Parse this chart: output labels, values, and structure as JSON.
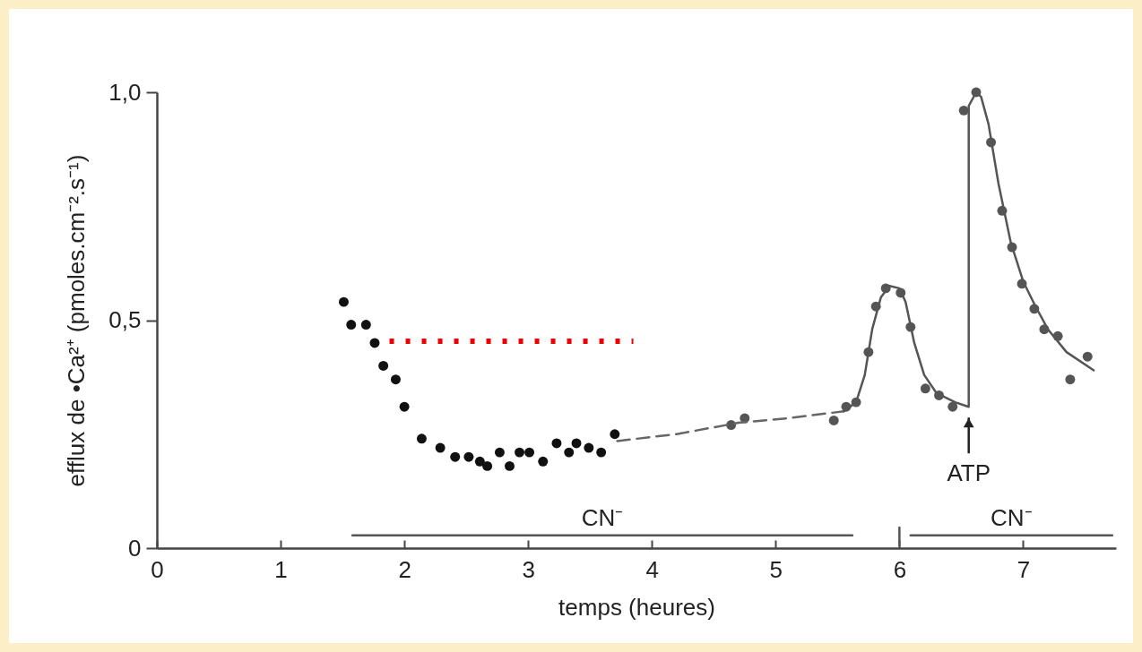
{
  "chart_data": {
    "type": "scatter",
    "xlabel": "temps (heures)",
    "ylabel": "efflux de •Ca²⁺ (pmoles.cm⁻².s⁻¹)",
    "xlim": [
      0,
      7.75
    ],
    "ylim": [
      0,
      1.0
    ],
    "xticks": [
      0,
      1,
      2,
      3,
      4,
      5,
      6,
      7
    ],
    "yticks": [
      0,
      {
        "value": 0.5,
        "label": "0,5"
      },
      {
        "value": 1.0,
        "label": "1,0"
      }
    ],
    "grid": false,
    "annotations": [
      {
        "text": "ATP",
        "x": 6.56,
        "y": 0.31
      }
    ],
    "series": [
      {
        "color": "#111111",
        "marker": "circle",
        "x": [
          1.51,
          1.57,
          1.69,
          1.76,
          1.83,
          1.93,
          2.0,
          2.14,
          2.29,
          2.41,
          2.52,
          2.61,
          2.67,
          2.77,
          2.85,
          2.93,
          3.01,
          3.12,
          3.23,
          3.33,
          3.39,
          3.49,
          3.59,
          3.7
        ],
        "values": [
          0.54,
          0.49,
          0.49,
          0.45,
          0.4,
          0.37,
          0.31,
          0.24,
          0.22,
          0.2,
          0.2,
          0.19,
          0.18,
          0.21,
          0.18,
          0.21,
          0.21,
          0.19,
          0.23,
          0.21,
          0.23,
          0.22,
          0.21,
          0.25
        ]
      },
      {
        "color": "#555555",
        "marker": "circle",
        "x": [
          4.64,
          4.75,
          5.47,
          5.57,
          5.65,
          5.75,
          5.81,
          5.89,
          6.01,
          6.09,
          6.21,
          6.32,
          6.43,
          6.52,
          6.62,
          6.74,
          6.83,
          6.91,
          6.99,
          7.09,
          7.17,
          7.28,
          7.38,
          7.52
        ],
        "values": [
          0.27,
          0.285,
          0.28,
          0.31,
          0.32,
          0.43,
          0.53,
          0.57,
          0.56,
          0.485,
          0.35,
          0.335,
          0.31,
          0.96,
          1.0,
          0.89,
          0.74,
          0.66,
          0.58,
          0.525,
          0.48,
          0.465,
          0.37,
          0.42
        ]
      },
      {
        "type": "line",
        "color": "#666666",
        "line_style": "dashed",
        "x": [
          3.72,
          4.2,
          4.7,
          5.1,
          5.55
        ],
        "values": [
          0.235,
          0.25,
          0.275,
          0.285,
          0.3
        ]
      },
      {
        "type": "line",
        "color": "#555555",
        "line_style": "solid",
        "x": [
          5.55,
          5.65,
          5.72,
          5.78,
          5.85,
          5.92,
          6.0,
          6.05,
          6.12,
          6.2,
          6.3,
          6.45,
          6.56,
          6.56,
          6.62,
          6.66,
          6.72,
          6.8,
          6.9,
          7.0,
          7.1,
          7.2,
          7.35,
          7.57
        ],
        "values": [
          0.3,
          0.32,
          0.38,
          0.48,
          0.55,
          0.575,
          0.57,
          0.54,
          0.45,
          0.38,
          0.34,
          0.32,
          0.31,
          0.97,
          1.0,
          0.99,
          0.93,
          0.8,
          0.67,
          0.585,
          0.53,
          0.48,
          0.43,
          0.39
        ]
      },
      {
        "type": "line",
        "color": "#ee0000",
        "line_style": "dotted",
        "x": [
          1.88,
          3.85
        ],
        "values": [
          0.454,
          0.454
        ]
      },
      {
        "type": "line",
        "name": "CN⁻",
        "color": "#555555",
        "line_style": "solid",
        "x": [
          1.58,
          5.62
        ],
        "values": [
          0.028,
          0.028
        ]
      },
      {
        "type": "line",
        "name": "CN⁻",
        "color": "#555555",
        "line_style": "solid",
        "x": [
          6.09,
          7.72
        ],
        "values": [
          0.028,
          0.028
        ]
      },
      {
        "type": "line",
        "color": "#555555",
        "line_style": "solid",
        "x": [
          6.0,
          6.0
        ],
        "values": [
          0.005,
          0.045
        ]
      }
    ]
  }
}
